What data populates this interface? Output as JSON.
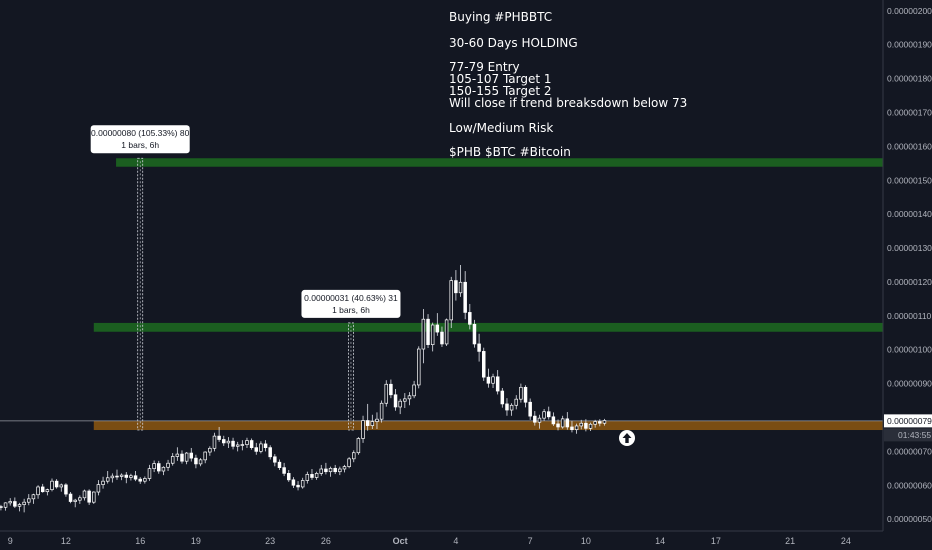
{
  "chart_data": {
    "type": "candlestick",
    "title": "",
    "annotation_lines": [
      "Buying #PHBBTC",
      "",
      "30-60 Days HOLDING",
      "",
      "77-79 Entry",
      "105-107 Target 1",
      "150-155 Target 2",
      "Will close if trend breaksdown below 73",
      "",
      "Low/Medium Risk",
      "",
      "$PHB $BTC #Bitcoin"
    ],
    "y_axis": {
      "ticks": [
        {
          "v": 200,
          "label": "0.00000200"
        },
        {
          "v": 190,
          "label": "0.00000190"
        },
        {
          "v": 180,
          "label": "0.00000180"
        },
        {
          "v": 170,
          "label": "0.00000170"
        },
        {
          "v": 160,
          "label": "0.00000160"
        },
        {
          "v": 150,
          "label": "0.00000150"
        },
        {
          "v": 140,
          "label": "0.00000140"
        },
        {
          "v": 130,
          "label": "0.00000130"
        },
        {
          "v": 120,
          "label": "0.00000120"
        },
        {
          "v": 110,
          "label": "0.00000110"
        },
        {
          "v": 100,
          "label": "0.00000100"
        },
        {
          "v": 90,
          "label": "0.00000090"
        },
        {
          "v": 70,
          "label": "0.00000070"
        },
        {
          "v": 60,
          "label": "0.00000060"
        },
        {
          "v": 50,
          "label": "0.00000050"
        }
      ],
      "ylim": [
        46.5,
        203.2
      ],
      "unit_note": "values in satoshi (x 1e-8 BTC)"
    },
    "x_axis": {
      "ticks": [
        {
          "day": 9,
          "label": "9"
        },
        {
          "day": 12,
          "label": "12"
        },
        {
          "day": 16,
          "label": "16"
        },
        {
          "day": 19,
          "label": "19"
        },
        {
          "day": 23,
          "label": "23"
        },
        {
          "day": 26,
          "label": "26"
        },
        {
          "day": 30,
          "label": "Oct",
          "bold": true
        },
        {
          "day": 33,
          "label": "4"
        },
        {
          "day": 37,
          "label": "7"
        },
        {
          "day": 40,
          "label": "10"
        },
        {
          "day": 44,
          "label": "14"
        },
        {
          "day": 47,
          "label": "17"
        },
        {
          "day": 51,
          "label": "21"
        },
        {
          "day": 54,
          "label": "24"
        }
      ],
      "xlim": [
        8.45,
        56.0
      ]
    },
    "price_label": "0.00000079",
    "countdown_label": "01:43:55",
    "current_price": 79,
    "zones": [
      {
        "name": "target-2",
        "from_day": 14.7,
        "to_day": 56,
        "low": 154,
        "high": 156.5,
        "color": "#1b5e20"
      },
      {
        "name": "target-1",
        "from_day": 13.5,
        "to_day": 56,
        "low": 105.3,
        "high": 107.9,
        "color": "#1b5e20"
      },
      {
        "name": "entry",
        "from_day": 13.5,
        "to_day": 56,
        "low": 76.3,
        "high": 79.1,
        "color": "#7a4d12"
      }
    ],
    "measurements": [
      {
        "day": 16,
        "from": 76.3,
        "to": 156.5,
        "line1": "0.00000080 (105.33%) 80",
        "line2": "1 bars, 6h"
      },
      {
        "day": 27.35,
        "from": 76.3,
        "to": 107.9,
        "line1": "0.00000031 (40.63%) 31",
        "line2": "1 bars, 6h"
      }
    ],
    "colors": {
      "up": "#ffffff",
      "down": "#ffffff",
      "zone_green": "#1b5e20",
      "zone_orange": "#7a4d12",
      "background": "#131722"
    },
    "candles": [
      [
        8.5,
        53.7,
        54.2,
        52.6,
        53.5
      ],
      [
        8.75,
        53.5,
        55.0,
        52.5,
        54.8
      ],
      [
        9.0,
        54.8,
        56.2,
        54.0,
        55.2
      ],
      [
        9.25,
        55.2,
        56.4,
        53.3,
        53.8
      ],
      [
        9.5,
        53.8,
        54.8,
        52.3,
        54.3
      ],
      [
        9.75,
        54.3,
        56.0,
        52.0,
        55.0
      ],
      [
        10.0,
        55.0,
        57.4,
        54.1,
        56.0
      ],
      [
        10.25,
        56.0,
        57.5,
        54.5,
        57.2
      ],
      [
        10.5,
        57.2,
        60.0,
        56.0,
        59.5
      ],
      [
        10.75,
        59.5,
        60.4,
        57.8,
        58.1
      ],
      [
        11.0,
        58.1,
        59.0,
        57.0,
        58.7
      ],
      [
        11.25,
        58.7,
        62.0,
        58.2,
        61.2
      ],
      [
        11.5,
        61.2,
        61.8,
        59.0,
        59.5
      ],
      [
        11.75,
        59.5,
        60.5,
        58.1,
        60.1
      ],
      [
        12.0,
        60.1,
        60.6,
        56.6,
        57.4
      ],
      [
        12.25,
        57.4,
        58.0,
        54.7,
        55.2
      ],
      [
        12.5,
        55.2,
        56.0,
        53.5,
        55.6
      ],
      [
        12.75,
        55.6,
        57.0,
        54.5,
        56.3
      ],
      [
        13.0,
        56.3,
        58.7,
        55.5,
        58.3
      ],
      [
        13.25,
        58.3,
        58.8,
        54.2,
        55.0
      ],
      [
        13.5,
        55.0,
        58.2,
        54.5,
        58.0
      ],
      [
        13.75,
        58.0,
        61.5,
        57.0,
        60.2
      ],
      [
        14.0,
        60.2,
        62.5,
        59.0,
        61.2
      ],
      [
        14.25,
        61.2,
        64.2,
        60.5,
        62.2
      ],
      [
        14.5,
        62.2,
        63.5,
        60.8,
        62.7
      ],
      [
        14.75,
        62.7,
        64.6,
        61.6,
        62.6
      ],
      [
        15.0,
        62.6,
        63.5,
        61.5,
        63.0
      ],
      [
        15.25,
        63.0,
        63.9,
        60.6,
        62.3
      ],
      [
        15.5,
        62.3,
        63.4,
        61.4,
        62.8
      ],
      [
        15.75,
        62.8,
        64.2,
        61.2,
        61.8
      ],
      [
        16.0,
        61.8,
        62.4,
        60.4,
        61.2
      ],
      [
        16.25,
        61.2,
        62.6,
        60.5,
        62.0
      ],
      [
        16.5,
        62.0,
        66.0,
        61.3,
        64.9
      ],
      [
        16.75,
        64.9,
        67.3,
        63.9,
        66.4
      ],
      [
        17.0,
        66.4,
        67.2,
        63.4,
        64.2
      ],
      [
        17.25,
        64.2,
        65.6,
        63.0,
        65.3
      ],
      [
        17.5,
        65.3,
        67.5,
        64.2,
        66.5
      ],
      [
        17.75,
        66.5,
        69.5,
        65.8,
        68.5
      ],
      [
        18.0,
        68.5,
        71.2,
        67.2,
        69.2
      ],
      [
        18.25,
        69.2,
        70.3,
        66.4,
        67.1
      ],
      [
        18.5,
        67.1,
        69.8,
        66.2,
        69.5
      ],
      [
        18.75,
        69.5,
        71.0,
        67.0,
        68.0
      ],
      [
        19.0,
        68.0,
        69.0,
        65.0,
        66.3
      ],
      [
        19.25,
        66.3,
        68.0,
        65.6,
        67.5
      ],
      [
        19.5,
        67.5,
        70.0,
        66.5,
        69.8
      ],
      [
        19.75,
        69.8,
        71.5,
        68.7,
        70.9
      ],
      [
        20.0,
        70.9,
        75.5,
        70.0,
        74.5
      ],
      [
        20.25,
        74.5,
        77.2,
        72.8,
        73.5
      ],
      [
        20.5,
        73.5,
        74.6,
        71.6,
        72.5
      ],
      [
        20.75,
        72.5,
        74.2,
        71.0,
        73.0
      ],
      [
        21.0,
        73.0,
        74.0,
        70.6,
        71.5
      ],
      [
        21.25,
        71.5,
        72.8,
        70.0,
        71.9
      ],
      [
        21.5,
        71.9,
        73.3,
        70.3,
        72.0
      ],
      [
        21.75,
        72.0,
        74.0,
        71.0,
        73.2
      ],
      [
        22.0,
        73.2,
        73.8,
        70.5,
        71.1
      ],
      [
        22.25,
        71.1,
        72.5,
        69.0,
        70.0
      ],
      [
        22.5,
        70.0,
        73.0,
        69.4,
        72.2
      ],
      [
        22.75,
        72.2,
        73.3,
        70.0,
        71.1
      ],
      [
        23.0,
        71.1,
        71.8,
        67.6,
        68.4
      ],
      [
        23.25,
        68.4,
        69.2,
        65.6,
        66.8
      ],
      [
        23.5,
        66.8,
        67.6,
        64.5,
        65.2
      ],
      [
        23.75,
        65.2,
        66.6,
        62.7,
        63.5
      ],
      [
        24.0,
        63.5,
        64.5,
        61.0,
        61.6
      ],
      [
        24.25,
        61.6,
        62.4,
        59.2,
        60.0
      ],
      [
        24.5,
        60.0,
        61.2,
        58.5,
        59.5
      ],
      [
        24.75,
        59.5,
        62.2,
        59.0,
        61.4
      ],
      [
        25.0,
        61.4,
        64.0,
        60.5,
        63.2
      ],
      [
        25.25,
        63.2,
        64.8,
        61.6,
        62.3
      ],
      [
        25.5,
        62.3,
        64.0,
        61.6,
        63.5
      ],
      [
        25.75,
        63.5,
        66.0,
        62.8,
        64.8
      ],
      [
        26.0,
        64.8,
        66.6,
        63.2,
        64.0
      ],
      [
        26.25,
        64.0,
        65.5,
        62.5,
        65.0
      ],
      [
        26.5,
        65.0,
        66.0,
        63.3,
        64.0
      ],
      [
        26.75,
        64.0,
        65.5,
        63.0,
        64.8
      ],
      [
        27.0,
        64.8,
        66.0,
        63.8,
        65.5
      ],
      [
        27.25,
        65.5,
        68.3,
        65.0,
        67.8
      ],
      [
        27.5,
        67.8,
        70.3,
        66.8,
        69.6
      ],
      [
        27.75,
        69.6,
        74.2,
        69.0,
        73.8
      ],
      [
        28.0,
        73.8,
        80.5,
        72.5,
        79.1
      ],
      [
        28.25,
        79.1,
        84.0,
        76.1,
        77.6
      ],
      [
        28.5,
        77.6,
        80.8,
        76.6,
        78.8
      ],
      [
        28.75,
        78.8,
        81.5,
        76.6,
        79.5
      ],
      [
        29.0,
        79.5,
        85.0,
        78.5,
        84.2
      ],
      [
        29.25,
        84.2,
        91.0,
        83.2,
        89.8
      ],
      [
        29.5,
        89.8,
        91.2,
        85.7,
        86.7
      ],
      [
        29.75,
        86.7,
        88.4,
        82.0,
        83.1
      ],
      [
        30.0,
        83.1,
        85.5,
        81.0,
        84.8
      ],
      [
        30.25,
        84.8,
        87.2,
        82.8,
        85.5
      ],
      [
        30.5,
        85.5,
        87.5,
        83.6,
        86.4
      ],
      [
        30.75,
        86.4,
        90.8,
        85.7,
        89.6
      ],
      [
        31.0,
        89.6,
        101.0,
        88.6,
        100.2
      ],
      [
        31.25,
        100.2,
        112.0,
        96.0,
        109.0
      ],
      [
        31.5,
        109.0,
        110.5,
        100.5,
        101.5
      ],
      [
        31.75,
        101.5,
        108.0,
        99.5,
        107.3
      ],
      [
        32.0,
        107.3,
        110.8,
        104.1,
        105.2
      ],
      [
        32.25,
        105.2,
        106.8,
        100.8,
        101.7
      ],
      [
        32.5,
        101.7,
        109.2,
        101.1,
        108.8
      ],
      [
        32.75,
        108.8,
        121.5,
        106.4,
        120.4
      ],
      [
        33.0,
        120.4,
        123.5,
        114.5,
        116.8
      ],
      [
        33.25,
        116.8,
        125.0,
        115.6,
        119.9
      ],
      [
        33.5,
        119.9,
        123.2,
        109.0,
        111.0
      ],
      [
        33.75,
        111.0,
        113.5,
        106.0,
        107.5
      ],
      [
        34.0,
        107.5,
        108.8,
        100.6,
        101.7
      ],
      [
        34.25,
        101.7,
        104.7,
        96.5,
        99.5
      ],
      [
        34.5,
        99.5,
        100.6,
        90.8,
        91.9
      ],
      [
        34.75,
        91.9,
        94.4,
        88.8,
        90.1
      ],
      [
        35.0,
        90.1,
        92.9,
        88.7,
        92.0
      ],
      [
        35.25,
        92.0,
        94.0,
        86.8,
        87.8
      ],
      [
        35.5,
        87.8,
        88.7,
        82.9,
        84.0
      ],
      [
        35.75,
        84.0,
        85.7,
        80.5,
        82.2
      ],
      [
        36.0,
        82.2,
        84.2,
        80.5,
        83.6
      ],
      [
        36.25,
        83.6,
        86.6,
        82.4,
        85.4
      ],
      [
        36.5,
        85.4,
        90.0,
        84.4,
        88.9
      ],
      [
        36.75,
        88.9,
        89.5,
        83.0,
        84.5
      ],
      [
        37.0,
        84.5,
        85.6,
        79.3,
        80.4
      ],
      [
        37.25,
        80.4,
        81.9,
        77.6,
        78.6
      ],
      [
        37.5,
        78.6,
        80.8,
        76.7,
        79.8
      ],
      [
        37.75,
        79.8,
        82.5,
        79.0,
        81.7
      ],
      [
        38.0,
        81.7,
        83.2,
        79.4,
        80.2
      ],
      [
        38.25,
        80.2,
        81.5,
        77.5,
        78.1
      ],
      [
        38.5,
        78.1,
        79.4,
        76.2,
        77.2
      ],
      [
        38.75,
        77.2,
        80.5,
        76.7,
        79.6
      ],
      [
        39.0,
        79.6,
        81.6,
        76.4,
        77.2
      ],
      [
        39.25,
        77.2,
        79.0,
        75.6,
        76.4
      ],
      [
        39.5,
        76.4,
        78.2,
        75.2,
        77.5
      ],
      [
        39.75,
        77.5,
        79.3,
        76.5,
        78.3
      ],
      [
        40.0,
        78.3,
        79.5,
        75.9,
        76.8
      ],
      [
        40.25,
        76.8,
        78.5,
        76.0,
        78.0
      ],
      [
        40.5,
        78.0,
        79.3,
        77.0,
        78.8
      ],
      [
        40.75,
        78.8,
        79.5,
        77.4,
        78.3
      ],
      [
        41.0,
        78.3,
        79.6,
        77.6,
        79.1
      ]
    ]
  }
}
